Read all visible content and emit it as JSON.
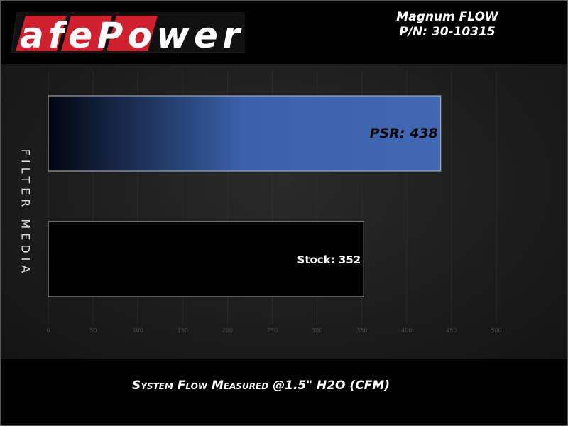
{
  "brand": {
    "logo_text": "afePower",
    "logo_red": "#d0202e"
  },
  "header": {
    "line1": "Magnum FLOW",
    "line2": "P/N: 30-10315"
  },
  "chart_data": {
    "type": "bar",
    "orientation": "horizontal",
    "categories": [
      "PSR",
      "Stock"
    ],
    "values": [
      438,
      352
    ],
    "data_labels": [
      "PSR: 438",
      "Stock: 352"
    ],
    "xlabel": "System Flow Measured @1.5\" H2O (CFM)",
    "ylabel": "FILTER MEDIA",
    "xlim": [
      0,
      500
    ],
    "xticks": [
      0,
      50,
      100,
      150,
      200,
      250,
      300,
      350,
      400,
      450,
      500
    ],
    "grid": true,
    "colors": {
      "PSR": "#3f66b0",
      "Stock": "#000000"
    }
  }
}
